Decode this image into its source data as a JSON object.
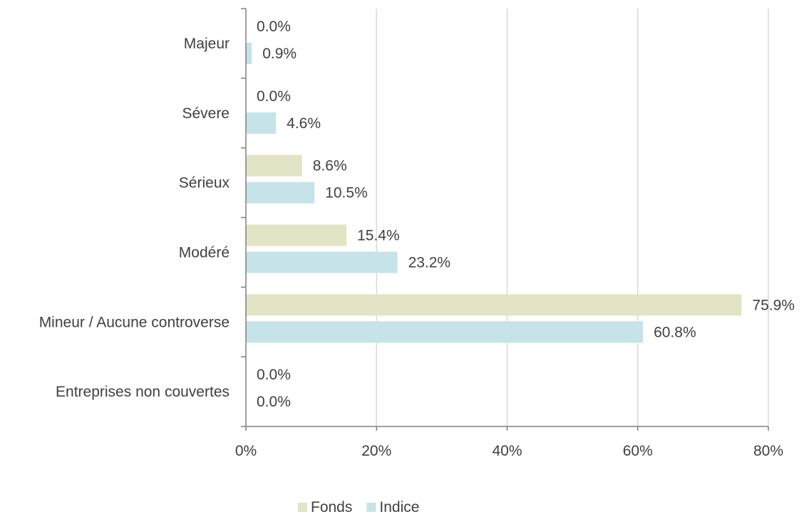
{
  "colors": {
    "fonds": "#e2e4c5",
    "indice": "#c5e3e8",
    "grid": "#d9d9d9",
    "axis": "#808080",
    "text": "#404040"
  },
  "chart_data": {
    "type": "bar",
    "orientation": "horizontal",
    "categories": [
      "Majeur",
      "Sévere",
      "Sérieux",
      "Modéré",
      "Mineur / Aucune controverse",
      "Entreprises non couvertes"
    ],
    "series": [
      {
        "name": "Fonds",
        "values": [
          0.0,
          0.0,
          8.6,
          15.4,
          75.9,
          0.0
        ],
        "labels": [
          "0.0%",
          "0.0%",
          "8.6%",
          "15.4%",
          "75.9%",
          "0.0%"
        ]
      },
      {
        "name": "Indice",
        "values": [
          0.9,
          4.6,
          10.5,
          23.2,
          60.8,
          0.0
        ],
        "labels": [
          "0.9%",
          "4.6%",
          "10.5%",
          "23.2%",
          "60.8%",
          "0.0%"
        ]
      }
    ],
    "xlim": [
      0,
      80
    ],
    "xticks": [
      0,
      20,
      40,
      60,
      80
    ],
    "xtick_labels": [
      "0%",
      "20%",
      "40%",
      "60%",
      "80%"
    ],
    "grid": true,
    "legend": "bottom-center"
  }
}
